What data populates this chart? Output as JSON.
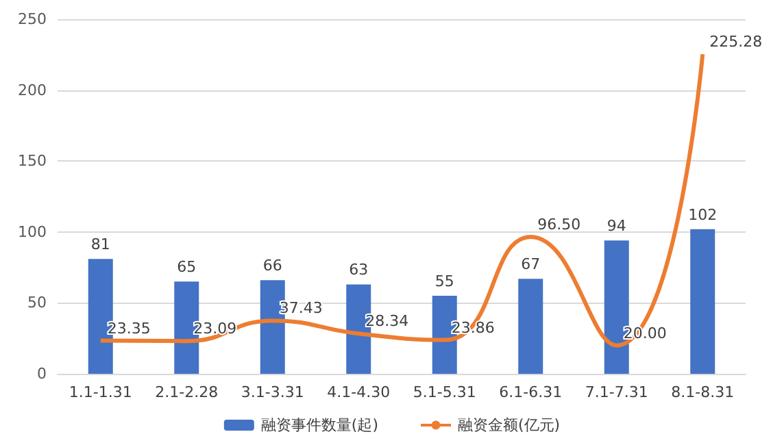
{
  "chart_data": {
    "type": "bar",
    "categories": [
      "1.1-1.31",
      "2.1-2.28",
      "3.1-3.31",
      "4.1-4.30",
      "5.1-5.31",
      "6.1-6.31",
      "7.1-7.31",
      "8.1-8.31"
    ],
    "series": [
      {
        "name": "融资事件数量(起)",
        "color": "#4472c4",
        "values": [
          81,
          65,
          66,
          63,
          55,
          67,
          94,
          102
        ]
      },
      {
        "name": "融资金额(亿元)",
        "type": "line",
        "color": "#ed7d31",
        "values": [
          23.35,
          23.09,
          37.43,
          28.34,
          23.86,
          96.5,
          20,
          225.28
        ],
        "value_labels": [
          "23.35",
          "23.09",
          "37.43",
          "28.34",
          "23.86",
          "96.50",
          "20.00",
          "225.28"
        ]
      }
    ],
    "ylim": [
      0,
      250
    ],
    "yticks": [
      0,
      50,
      100,
      150,
      200,
      250
    ],
    "grid": "y",
    "legend": "bottom",
    "data_labels": true,
    "marker": "none",
    "line_style": "solid"
  }
}
